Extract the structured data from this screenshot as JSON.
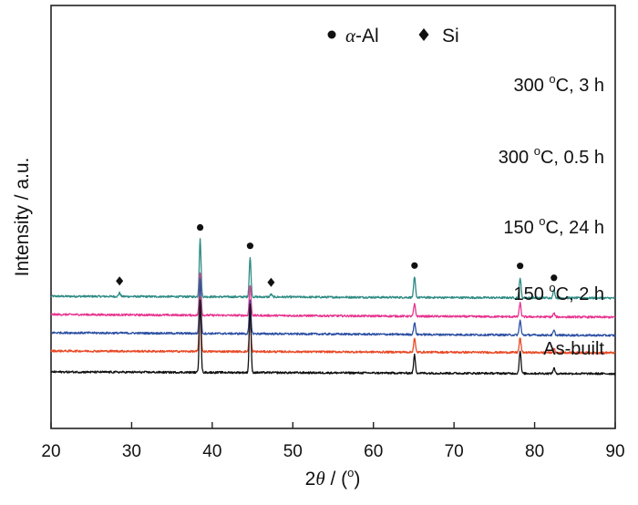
{
  "chart_data": {
    "type": "line",
    "xlabel": {
      "prefix": "2",
      "symbol": "θ",
      "rest": " / (",
      "sup": "o",
      "close": ")"
    },
    "ylabel": "Intensity / a.u.",
    "xlim": [
      20,
      90
    ],
    "xticks": [
      20,
      30,
      40,
      50,
      60,
      70,
      80,
      90
    ],
    "legend": {
      "position": "top",
      "items": [
        {
          "marker": "circle",
          "symbol": "α",
          "text": "-Al"
        },
        {
          "marker": "diamond",
          "text": "Si"
        }
      ]
    },
    "peaks": {
      "alpha_al": [
        38.5,
        44.7,
        65.1,
        78.2,
        82.4
      ],
      "si": [
        28.5,
        47.3
      ]
    },
    "series": [
      {
        "name_parts": {
          "a": "300 ",
          "sup": "o",
          "b": "C, 3 h"
        },
        "color": "#2e8b84",
        "baseline": [
          0.83,
          0.81
        ],
        "peaks": [
          [
            28.5,
            0.04
          ],
          [
            38.5,
            0.63
          ],
          [
            44.7,
            0.43
          ],
          [
            47.3,
            0.03
          ],
          [
            65.1,
            0.22
          ],
          [
            78.2,
            0.22
          ],
          [
            82.4,
            0.09
          ]
        ],
        "markers": [
          {
            "type": "diamond",
            "x": 28.5
          },
          {
            "type": "circle",
            "x": 38.5
          },
          {
            "type": "circle",
            "x": 44.7
          },
          {
            "type": "diamond",
            "x": 47.3
          },
          {
            "type": "circle",
            "x": 65.1
          },
          {
            "type": "circle",
            "x": 78.2
          },
          {
            "type": "circle",
            "x": 82.4
          }
        ]
      },
      {
        "name_parts": {
          "a": "300 ",
          "sup": "o",
          "b": "C, 0.5 h"
        },
        "color": "#e8338f",
        "baseline": [
          0.63,
          0.6
        ],
        "peaks": [
          [
            38.5,
            0.47
          ],
          [
            44.7,
            0.33
          ],
          [
            65.1,
            0.13
          ],
          [
            78.2,
            0.15
          ],
          [
            82.4,
            0.04
          ]
        ],
        "markers": []
      },
      {
        "name_parts": {
          "a": "150 ",
          "sup": "o",
          "b": "C, 24 h"
        },
        "color": "#2c4fa3",
        "baseline": [
          0.43,
          0.4
        ],
        "peaks": [
          [
            38.5,
            0.6
          ],
          [
            44.7,
            0.36
          ],
          [
            65.1,
            0.13
          ],
          [
            78.2,
            0.16
          ],
          [
            82.4,
            0.05
          ]
        ],
        "markers": []
      },
      {
        "name_parts": {
          "a": "150 ",
          "sup": "o",
          "b": "C, 2 h"
        },
        "color": "#e84a27",
        "baseline": [
          0.23,
          0.21
        ],
        "peaks": [
          [
            38.5,
            0.59
          ],
          [
            44.7,
            0.35
          ],
          [
            65.1,
            0.15
          ],
          [
            78.2,
            0.16
          ],
          [
            82.4,
            0.04
          ]
        ],
        "markers": []
      },
      {
        "name_parts": {
          "a": "As-built",
          "sup": "",
          "b": ""
        },
        "color": "#111111",
        "baseline": [
          0.0,
          -0.02
        ],
        "peaks": [
          [
            38.5,
            0.8
          ],
          [
            44.7,
            0.76
          ],
          [
            65.1,
            0.2
          ],
          [
            78.2,
            0.25
          ],
          [
            82.4,
            0.06
          ]
        ],
        "markers": []
      }
    ]
  }
}
